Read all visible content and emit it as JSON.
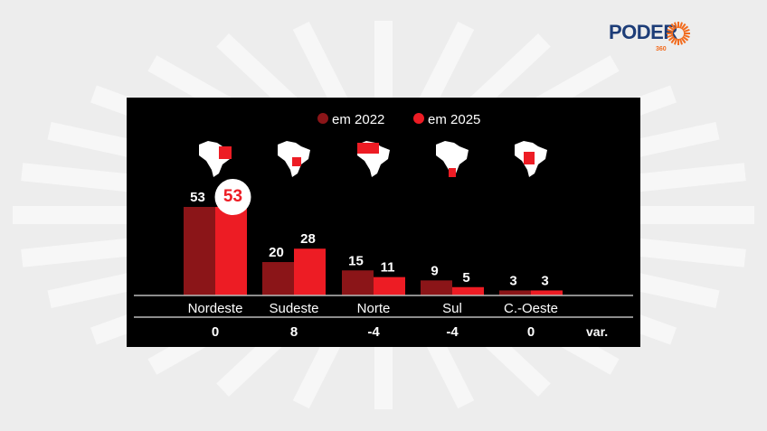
{
  "brand": {
    "name": "PODER",
    "sub": "360",
    "color": "#1d3d78",
    "accent": "#f26b1d"
  },
  "chart_data": {
    "type": "bar",
    "categories": [
      "Nordeste",
      "Sudeste",
      "Norte",
      "Sul",
      "C.-Oeste"
    ],
    "series": [
      {
        "name": "em 2022",
        "values": [
          53,
          20,
          15,
          9,
          3
        ],
        "color": "#8b1518"
      },
      {
        "name": "em 2025",
        "values": [
          53,
          28,
          11,
          5,
          3
        ],
        "color": "#ed1c24"
      }
    ],
    "variation": {
      "label": "var.",
      "values": [
        "0",
        "8",
        "-4",
        "-4",
        "0"
      ]
    },
    "highlight": "Nordeste 2025",
    "legend": "top",
    "ylim": [
      0,
      53
    ],
    "grid": false,
    "region_maps": [
      "nordeste-map-icon",
      "sudeste-map-icon",
      "norte-map-icon",
      "sul-map-icon",
      "centro-oeste-map-icon"
    ]
  }
}
